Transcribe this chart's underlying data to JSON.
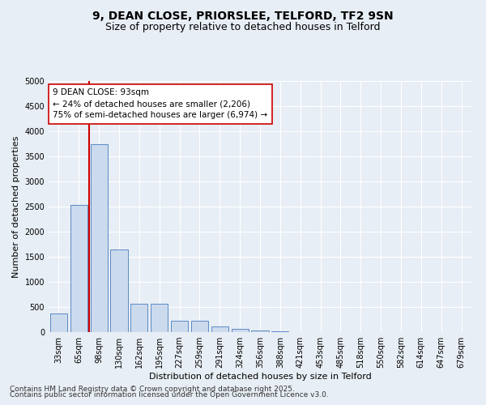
{
  "title_line1": "9, DEAN CLOSE, PRIORSLEE, TELFORD, TF2 9SN",
  "title_line2": "Size of property relative to detached houses in Telford",
  "xlabel": "Distribution of detached houses by size in Telford",
  "ylabel": "Number of detached properties",
  "categories": [
    "33sqm",
    "65sqm",
    "98sqm",
    "130sqm",
    "162sqm",
    "195sqm",
    "227sqm",
    "259sqm",
    "291sqm",
    "324sqm",
    "356sqm",
    "388sqm",
    "421sqm",
    "453sqm",
    "485sqm",
    "518sqm",
    "550sqm",
    "582sqm",
    "614sqm",
    "647sqm",
    "679sqm"
  ],
  "values": [
    370,
    2540,
    3750,
    1650,
    570,
    570,
    220,
    220,
    110,
    60,
    40,
    10,
    5,
    5,
    3,
    3,
    2,
    2,
    2,
    2,
    2
  ],
  "bar_color": "#ccdaed",
  "bar_edge_color": "#5b8ac5",
  "vline_color": "#cc0000",
  "vline_x_index": 1.5,
  "annotation_text": "9 DEAN CLOSE: 93sqm\n← 24% of detached houses are smaller (2,206)\n75% of semi-detached houses are larger (6,974) →",
  "annotation_box_facecolor": "#ffffff",
  "annotation_box_edgecolor": "#cc0000",
  "ylim": [
    0,
    5000
  ],
  "yticks": [
    0,
    500,
    1000,
    1500,
    2000,
    2500,
    3000,
    3500,
    4000,
    4500,
    5000
  ],
  "background_color": "#e8eef5",
  "grid_color": "#ffffff",
  "footer_line1": "Contains HM Land Registry data © Crown copyright and database right 2025.",
  "footer_line2": "Contains public sector information licensed under the Open Government Licence v3.0.",
  "title_fontsize": 10,
  "subtitle_fontsize": 9,
  "tick_fontsize": 7,
  "label_fontsize": 8,
  "annotation_fontsize": 7.5,
  "footer_fontsize": 6.5
}
